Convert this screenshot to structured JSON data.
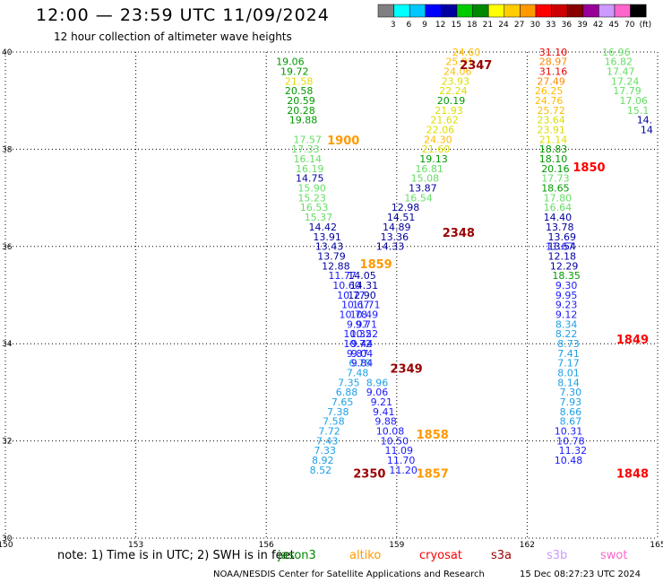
{
  "header": {
    "title": "12:00 — 23:59 UTC 11/09/2024",
    "subtitle": "12 hour collection of altimeter wave heights"
  },
  "colorbar": {
    "colors": [
      "#808080",
      "#00ffff",
      "#00c8ff",
      "#0000ff",
      "#0000a0",
      "#00cc00",
      "#008800",
      "#ffff00",
      "#ffcc00",
      "#ff9900",
      "#ff0000",
      "#cc0000",
      "#880000",
      "#990099",
      "#cc99ff",
      "#ff66cc",
      "#000000"
    ],
    "labels": [
      "3",
      "6",
      "9",
      "12",
      "15",
      "18",
      "21",
      "24",
      "27",
      "30",
      "33",
      "36",
      "39",
      "42",
      "45",
      "70",
      "(ft)"
    ]
  },
  "chart_data": {
    "type": "scatter",
    "xlim": [
      150,
      165
    ],
    "ylim": [
      30,
      40
    ],
    "x_ticks": [
      "150",
      "153",
      "156",
      "159",
      "162",
      "165"
    ],
    "y_ticks": [
      "30",
      "32",
      "34",
      "36",
      "38",
      "40"
    ],
    "grid": true,
    "tracks": [
      {
        "name": "track-1900",
        "pass_label": "1900",
        "pass_label_pos": [
          157.4,
          38.1
        ],
        "pass_color": "#ff9900",
        "points": [
          {
            "x": 156.55,
            "y": 39.73,
            "label": "19.06"
          },
          {
            "x": 156.65,
            "y": 39.53,
            "label": "19.72"
          },
          {
            "x": 156.75,
            "y": 39.33,
            "label": "21.58"
          },
          {
            "x": 156.75,
            "y": 39.13,
            "label": "20.58"
          },
          {
            "x": 156.8,
            "y": 38.93,
            "label": "20.59"
          },
          {
            "x": 156.8,
            "y": 38.73,
            "label": "20.28"
          },
          {
            "x": 156.85,
            "y": 38.53,
            "label": "19.88"
          },
          {
            "x": 156.95,
            "y": 38.13,
            "label": "17.57"
          },
          {
            "x": 156.9,
            "y": 37.93,
            "label": "17.33"
          },
          {
            "x": 156.95,
            "y": 37.73,
            "label": "16.14"
          },
          {
            "x": 157.0,
            "y": 37.53,
            "label": "16.19"
          },
          {
            "x": 157.0,
            "y": 37.33,
            "label": "14.75"
          },
          {
            "x": 157.05,
            "y": 37.13,
            "label": "15.90"
          },
          {
            "x": 157.05,
            "y": 36.93,
            "label": "15.23"
          },
          {
            "x": 157.1,
            "y": 36.73,
            "label": "16.53"
          },
          {
            "x": 157.2,
            "y": 36.53,
            "label": "15.37"
          },
          {
            "x": 157.3,
            "y": 36.33,
            "label": "14.42"
          },
          {
            "x": 157.4,
            "y": 36.13,
            "label": "13.91"
          },
          {
            "x": 157.45,
            "y": 35.93,
            "label": "13.43"
          },
          {
            "x": 157.5,
            "y": 35.73,
            "label": "13.79"
          },
          {
            "x": 157.6,
            "y": 35.53,
            "label": "12.88"
          },
          {
            "x": 157.75,
            "y": 35.33,
            "label": "11.77"
          },
          {
            "x": 157.85,
            "y": 35.13,
            "label": "10.60"
          },
          {
            "x": 157.95,
            "y": 34.93,
            "label": "10.77"
          },
          {
            "x": 158.05,
            "y": 34.73,
            "label": "10.67"
          },
          {
            "x": 158.0,
            "y": 34.53,
            "label": "10.78"
          },
          {
            "x": 158.1,
            "y": 34.33,
            "label": "9.97"
          },
          {
            "x": 158.1,
            "y": 34.13,
            "label": "10.32"
          },
          {
            "x": 158.1,
            "y": 33.93,
            "label": "10.72"
          },
          {
            "x": 158.1,
            "y": 33.73,
            "label": "9.87"
          },
          {
            "x": 158.15,
            "y": 33.53,
            "label": "6.78"
          },
          {
            "x": 158.1,
            "y": 33.33,
            "label": "7.48"
          },
          {
            "x": 157.9,
            "y": 33.13,
            "label": "7.35"
          },
          {
            "x": 157.85,
            "y": 32.93,
            "label": "6.88"
          },
          {
            "x": 157.75,
            "y": 32.73,
            "label": "7.65"
          },
          {
            "x": 157.65,
            "y": 32.53,
            "label": "7.38"
          },
          {
            "x": 157.55,
            "y": 32.33,
            "label": "7.58"
          },
          {
            "x": 157.45,
            "y": 32.13,
            "label": "7.72"
          },
          {
            "x": 157.4,
            "y": 31.93,
            "label": "7.43"
          },
          {
            "x": 157.35,
            "y": 31.73,
            "label": "7.33"
          },
          {
            "x": 157.3,
            "y": 31.53,
            "label": "8.92"
          },
          {
            "x": 157.25,
            "y": 31.33,
            "label": "8.52"
          }
        ]
      },
      {
        "name": "track-1859",
        "pass_label": "1859",
        "pass_label_pos": [
          158.15,
          35.55
        ],
        "pass_color": "#ff9900",
        "points": [
          {
            "x": 158.2,
            "y": 35.33,
            "label": "14.05"
          },
          {
            "x": 158.25,
            "y": 35.13,
            "label": "14.31"
          },
          {
            "x": 158.2,
            "y": 34.93,
            "label": "12.90"
          },
          {
            "x": 158.3,
            "y": 34.73,
            "label": "11.71"
          },
          {
            "x": 158.25,
            "y": 34.53,
            "label": "10.49"
          },
          {
            "x": 158.3,
            "y": 34.33,
            "label": "9.71"
          },
          {
            "x": 158.25,
            "y": 34.13,
            "label": "10.52"
          },
          {
            "x": 158.2,
            "y": 33.93,
            "label": "9.44"
          },
          {
            "x": 158.2,
            "y": 33.73,
            "label": "9.04"
          },
          {
            "x": 158.2,
            "y": 33.53,
            "label": "9.84"
          }
        ]
      },
      {
        "name": "track-2348",
        "pass_label": "2348",
        "pass_label_pos": [
          160.05,
          36.2
        ],
        "pass_color": "#990000",
        "points": [
          {
            "x": 160.6,
            "y": 39.93,
            "label": "24.60"
          },
          {
            "x": 160.45,
            "y": 39.73,
            "label": "25.91"
          },
          {
            "x": 160.4,
            "y": 39.53,
            "label": "24.06"
          },
          {
            "x": 160.35,
            "y": 39.33,
            "label": "23.93"
          },
          {
            "x": 160.3,
            "y": 39.13,
            "label": "22.24"
          },
          {
            "x": 160.25,
            "y": 38.93,
            "label": "20.19"
          },
          {
            "x": 160.2,
            "y": 38.73,
            "label": "21.93"
          },
          {
            "x": 160.1,
            "y": 38.53,
            "label": "21.62"
          },
          {
            "x": 160.0,
            "y": 38.33,
            "label": "22.06"
          },
          {
            "x": 159.95,
            "y": 38.13,
            "label": "24.30"
          },
          {
            "x": 159.9,
            "y": 37.93,
            "label": "21.60"
          },
          {
            "x": 159.85,
            "y": 37.73,
            "label": "19.13"
          },
          {
            "x": 159.75,
            "y": 37.53,
            "label": "16.81"
          },
          {
            "x": 159.65,
            "y": 37.33,
            "label": "15.08"
          },
          {
            "x": 159.6,
            "y": 37.13,
            "label": "13.87"
          },
          {
            "x": 159.5,
            "y": 36.93,
            "label": "16.54"
          },
          {
            "x": 159.2,
            "y": 36.73,
            "label": "12.98"
          },
          {
            "x": 159.1,
            "y": 36.53,
            "label": "14.51"
          },
          {
            "x": 159.0,
            "y": 36.33,
            "label": "14.89"
          },
          {
            "x": 158.95,
            "y": 36.13,
            "label": "13.36"
          },
          {
            "x": 158.85,
            "y": 35.93,
            "label": "14.33"
          }
        ]
      },
      {
        "name": "track-2349",
        "pass_label": "2349",
        "pass_label_pos": [
          158.85,
          33.4
        ],
        "pass_color": "#990000",
        "points": [
          {
            "x": 158.55,
            "y": 33.13,
            "label": "8.96"
          },
          {
            "x": 158.55,
            "y": 32.93,
            "label": "9.06"
          },
          {
            "x": 158.65,
            "y": 32.73,
            "label": "9.21"
          },
          {
            "x": 158.7,
            "y": 32.53,
            "label": "9.41"
          },
          {
            "x": 158.75,
            "y": 32.33,
            "label": "9.88"
          },
          {
            "x": 158.85,
            "y": 32.13,
            "label": "10.08"
          },
          {
            "x": 158.95,
            "y": 31.93,
            "label": "10.50"
          },
          {
            "x": 159.05,
            "y": 31.73,
            "label": "11.09"
          },
          {
            "x": 159.1,
            "y": 31.53,
            "label": "11.70"
          },
          {
            "x": 159.15,
            "y": 31.33,
            "label": "11.20"
          }
        ]
      },
      {
        "name": "track-1850",
        "pass_label": "1850",
        "pass_label_pos": [
          163.05,
          37.55
        ],
        "pass_color": "#ff0000",
        "points": [
          {
            "x": 162.6,
            "y": 39.93,
            "label": "31.10"
          },
          {
            "x": 162.6,
            "y": 39.73,
            "label": "28.97"
          },
          {
            "x": 162.6,
            "y": 39.53,
            "label": "31.16"
          },
          {
            "x": 162.55,
            "y": 39.33,
            "label": "27.49"
          },
          {
            "x": 162.5,
            "y": 39.13,
            "label": "26.25"
          },
          {
            "x": 162.5,
            "y": 38.93,
            "label": "24.76"
          },
          {
            "x": 162.55,
            "y": 38.73,
            "label": "25.72"
          },
          {
            "x": 162.55,
            "y": 38.53,
            "label": "23.64"
          },
          {
            "x": 162.55,
            "y": 38.33,
            "label": "23.91"
          },
          {
            "x": 162.6,
            "y": 38.13,
            "label": "21.14"
          },
          {
            "x": 162.6,
            "y": 37.93,
            "label": "18.83"
          },
          {
            "x": 162.6,
            "y": 37.73,
            "label": "18.10"
          },
          {
            "x": 162.65,
            "y": 37.53,
            "label": "20.16"
          },
          {
            "x": 162.65,
            "y": 37.33,
            "label": "17.73"
          },
          {
            "x": 162.65,
            "y": 37.13,
            "label": "18.65"
          },
          {
            "x": 162.7,
            "y": 36.93,
            "label": "17.80"
          },
          {
            "x": 162.7,
            "y": 36.73,
            "label": "16.64"
          },
          {
            "x": 162.7,
            "y": 36.53,
            "label": "14.40"
          },
          {
            "x": 162.75,
            "y": 36.33,
            "label": "13.78"
          },
          {
            "x": 162.8,
            "y": 36.13,
            "label": "13.69"
          },
          {
            "x": 162.8,
            "y": 35.93,
            "label": "13.54"
          },
          {
            "x": 162.8,
            "y": 35.73,
            "label": "12.18"
          },
          {
            "x": 162.85,
            "y": 35.53,
            "label": "12.29"
          }
        ]
      },
      {
        "name": "track-1849",
        "pass_label": "1849",
        "pass_label_pos": [
          164.05,
          34.0
        ],
        "pass_color": "#ff0000",
        "points": [
          {
            "x": 162.75,
            "y": 35.93,
            "label": "11.67"
          },
          {
            "x": 162.9,
            "y": 35.33,
            "label": "18.35"
          },
          {
            "x": 162.9,
            "y": 35.13,
            "label": "9.30"
          },
          {
            "x": 162.9,
            "y": 34.93,
            "label": "9.95"
          },
          {
            "x": 162.9,
            "y": 34.73,
            "label": "9.23"
          },
          {
            "x": 162.9,
            "y": 34.53,
            "label": "9.12"
          },
          {
            "x": 162.9,
            "y": 34.33,
            "label": "8.34"
          },
          {
            "x": 162.9,
            "y": 34.13,
            "label": "8.22"
          },
          {
            "x": 162.95,
            "y": 33.93,
            "label": "8.73"
          },
          {
            "x": 162.95,
            "y": 33.73,
            "label": "7.41"
          },
          {
            "x": 162.95,
            "y": 33.53,
            "label": "7.17"
          },
          {
            "x": 162.95,
            "y": 33.33,
            "label": "8.01"
          },
          {
            "x": 162.95,
            "y": 33.13,
            "label": "8.14"
          },
          {
            "x": 163.0,
            "y": 32.93,
            "label": "7.30"
          },
          {
            "x": 163.0,
            "y": 32.73,
            "label": "7.93"
          },
          {
            "x": 163.0,
            "y": 32.53,
            "label": "8.66"
          },
          {
            "x": 163.0,
            "y": 32.33,
            "label": "8.67"
          },
          {
            "x": 162.95,
            "y": 32.13,
            "label": "10.31"
          },
          {
            "x": 163.0,
            "y": 31.93,
            "label": "10.78"
          },
          {
            "x": 163.05,
            "y": 31.73,
            "label": "11.32"
          },
          {
            "x": 162.95,
            "y": 31.53,
            "label": "10.48"
          }
        ]
      },
      {
        "name": "track-ne",
        "pass_label": "",
        "pass_label_pos": [
          0,
          0
        ],
        "pass_color": "#000000",
        "points": [
          {
            "x": 164.05,
            "y": 39.93,
            "label": "16.96"
          },
          {
            "x": 164.1,
            "y": 39.73,
            "label": "16.82"
          },
          {
            "x": 164.15,
            "y": 39.53,
            "label": "17.47"
          },
          {
            "x": 164.25,
            "y": 39.33,
            "label": "17.24"
          },
          {
            "x": 164.3,
            "y": 39.13,
            "label": "17.79"
          },
          {
            "x": 164.45,
            "y": 38.93,
            "label": "17.06"
          },
          {
            "x": 164.55,
            "y": 38.73,
            "label": "15.1"
          },
          {
            "x": 164.7,
            "y": 38.53,
            "label": "14."
          },
          {
            "x": 164.75,
            "y": 38.33,
            "label": "14"
          }
        ]
      }
    ],
    "extra_pass_labels": [
      {
        "label": "2347",
        "x": 160.45,
        "y": 39.65,
        "color": "#990000"
      },
      {
        "label": "1858",
        "x": 159.45,
        "y": 32.05,
        "color": "#ff9900"
      },
      {
        "label": "2350",
        "x": 158.0,
        "y": 31.25,
        "color": "#990000"
      },
      {
        "label": "1857",
        "x": 159.45,
        "y": 31.25,
        "color": "#ff9900"
      },
      {
        "label": "1848",
        "x": 164.05,
        "y": 31.25,
        "color": "#ff0000"
      }
    ]
  },
  "footer": {
    "note": "note:  1) Time is in UTC;  2) SWH is in feet",
    "satellites": [
      {
        "name": "jason3",
        "color": "#008800"
      },
      {
        "name": "altiko",
        "color": "#ff9900"
      },
      {
        "name": "cryosat",
        "color": "#ff0000"
      },
      {
        "name": "s3a",
        "color": "#990000"
      },
      {
        "name": "s3b",
        "color": "#cc99ff"
      },
      {
        "name": "swot",
        "color": "#ff66cc"
      }
    ],
    "org": "NOAA/NESDIS Center for Satellite Applications and Research",
    "timestamp": "15 Dec 08:27:23 UTC 2024"
  }
}
